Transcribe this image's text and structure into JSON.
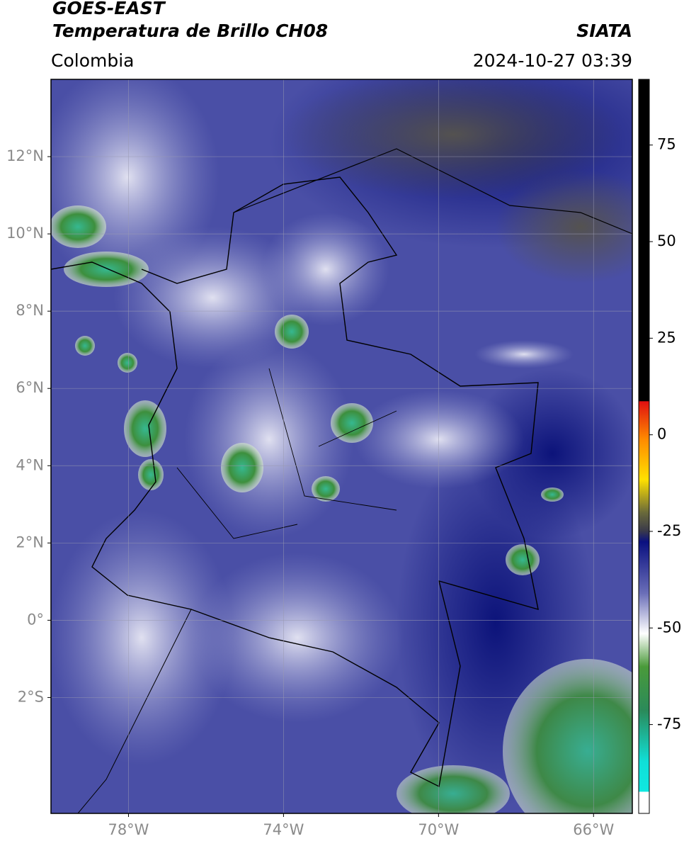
{
  "header": {
    "title": "GOES-EAST",
    "subtitle": "Temperatura de Brillo CH08",
    "region": "Colombia",
    "source": "SIATA",
    "timestamp": "2024-10-27 03:39"
  },
  "map": {
    "lonlim": [
      -80,
      -65
    ],
    "latlim": [
      -5,
      14
    ],
    "lat_ticks": [
      {
        "value": 12,
        "label": "12°N"
      },
      {
        "value": 10,
        "label": "10°N"
      },
      {
        "value": 8,
        "label": "8°N"
      },
      {
        "value": 6,
        "label": "6°N"
      },
      {
        "value": 4,
        "label": "4°N"
      },
      {
        "value": 2,
        "label": "2°N"
      },
      {
        "value": 0,
        "label": "0°"
      },
      {
        "value": -2,
        "label": "2°S"
      }
    ],
    "lon_ticks": [
      {
        "value": -78,
        "label": "78°W"
      },
      {
        "value": -74,
        "label": "74°W"
      },
      {
        "value": -70,
        "label": "70°W"
      },
      {
        "value": -66,
        "label": "66°W"
      }
    ],
    "grid": true
  },
  "colorbar": {
    "lim": [
      -98,
      92
    ],
    "ticks": [
      75,
      50,
      25,
      0,
      -25,
      -50,
      -75
    ]
  }
}
